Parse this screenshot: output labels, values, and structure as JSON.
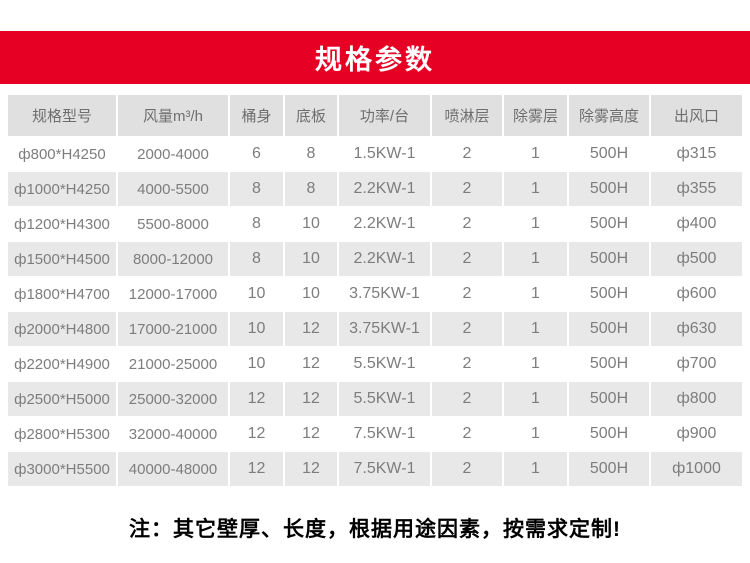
{
  "banner": {
    "title": "规格参数",
    "bg_color": "#e60023",
    "text_color": "#ffffff"
  },
  "table": {
    "header_bg_color": "#e0e0e0",
    "stripe_bg_color": "#e8e8e8",
    "text_color": "#7d7d7d",
    "columns": [
      "规格型号",
      "风量m³/h",
      "桶身",
      "底板",
      "功率/台",
      "喷淋层",
      "除雾层",
      "除雾高度",
      "出风口"
    ],
    "rows": [
      [
        "ф800*H4250",
        "2000-4000",
        "6",
        "8",
        "1.5KW-1",
        "2",
        "1",
        "500H",
        "ф315"
      ],
      [
        "ф1000*H4250",
        "4000-5500",
        "8",
        "8",
        "2.2KW-1",
        "2",
        "1",
        "500H",
        "ф355"
      ],
      [
        "ф1200*H4300",
        "5500-8000",
        "8",
        "10",
        "2.2KW-1",
        "2",
        "1",
        "500H",
        "ф400"
      ],
      [
        "ф1500*H4500",
        "8000-12000",
        "8",
        "10",
        "2.2KW-1",
        "2",
        "1",
        "500H",
        "ф500"
      ],
      [
        "ф1800*H4700",
        "12000-17000",
        "10",
        "10",
        "3.75KW-1",
        "2",
        "1",
        "500H",
        "ф600"
      ],
      [
        "ф2000*H4800",
        "17000-21000",
        "10",
        "12",
        "3.75KW-1",
        "2",
        "1",
        "500H",
        "ф630"
      ],
      [
        "ф2200*H4900",
        "21000-25000",
        "10",
        "12",
        "5.5KW-1",
        "2",
        "1",
        "500H",
        "ф700"
      ],
      [
        "ф2500*H5000",
        "25000-32000",
        "12",
        "12",
        "5.5KW-1",
        "2",
        "1",
        "500H",
        "ф800"
      ],
      [
        "ф2800*H5300",
        "32000-40000",
        "12",
        "12",
        "7.5KW-1",
        "2",
        "1",
        "500H",
        "ф900"
      ],
      [
        "ф3000*H5500",
        "40000-48000",
        "12",
        "12",
        "7.5KW-1",
        "2",
        "1",
        "500H",
        "ф1000"
      ]
    ]
  },
  "note": {
    "text": "注：其它壁厚、长度，根据用途因素，按需求定制!"
  }
}
